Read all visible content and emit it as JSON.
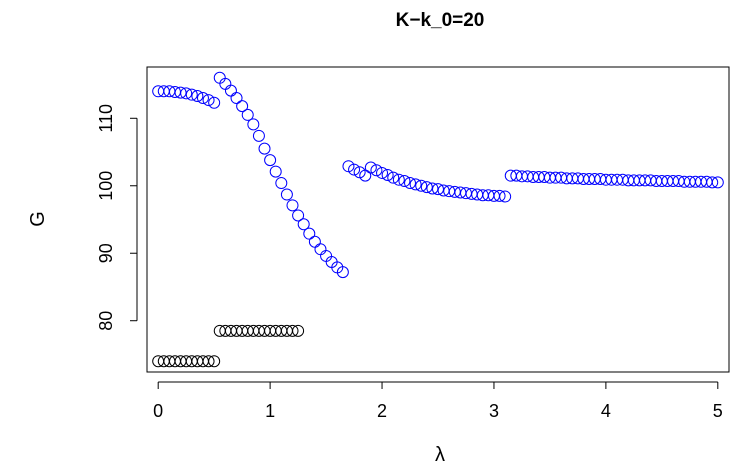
{
  "chart_data": {
    "type": "scatter",
    "title": "K−k_0=20",
    "xlabel": "λ",
    "ylabel": "G",
    "xlim": [
      -0.1,
      5.1
    ],
    "ylim": [
      72.4,
      117.6
    ],
    "x_ticks": [
      0,
      1,
      2,
      3,
      4,
      5
    ],
    "x_tick_labels": [
      "0",
      "1",
      "2",
      "3",
      "4",
      "5"
    ],
    "y_ticks": [
      80,
      90,
      100,
      110
    ],
    "y_tick_labels": [
      "80",
      "90",
      "100",
      "110"
    ],
    "grid": false,
    "legend": "none",
    "marker": "open-circle",
    "series": [
      {
        "color": "#000000",
        "points": [
          [
            0.0,
            74.0
          ],
          [
            0.05,
            74.0
          ],
          [
            0.1,
            74.0
          ],
          [
            0.15,
            74.0
          ],
          [
            0.2,
            74.0
          ],
          [
            0.25,
            74.0
          ],
          [
            0.3,
            74.0
          ],
          [
            0.35,
            74.0
          ],
          [
            0.4,
            74.0
          ],
          [
            0.45,
            74.0
          ],
          [
            0.5,
            74.0
          ],
          [
            0.55,
            78.5
          ],
          [
            0.6,
            78.5
          ],
          [
            0.65,
            78.5
          ],
          [
            0.7,
            78.5
          ],
          [
            0.75,
            78.5
          ],
          [
            0.8,
            78.5
          ],
          [
            0.85,
            78.5
          ],
          [
            0.9,
            78.5
          ],
          [
            0.95,
            78.5
          ],
          [
            1.0,
            78.5
          ],
          [
            1.05,
            78.5
          ],
          [
            1.1,
            78.5
          ],
          [
            1.15,
            78.5
          ],
          [
            1.2,
            78.5
          ],
          [
            1.25,
            78.5
          ]
        ]
      },
      {
        "color": "#0000ff",
        "points": [
          [
            0.0,
            114.0
          ],
          [
            0.05,
            114.0
          ],
          [
            0.1,
            114.0
          ],
          [
            0.15,
            113.9
          ],
          [
            0.2,
            113.8
          ],
          [
            0.25,
            113.7
          ],
          [
            0.3,
            113.5
          ],
          [
            0.35,
            113.3
          ],
          [
            0.4,
            113.0
          ],
          [
            0.45,
            112.7
          ],
          [
            0.5,
            112.3
          ],
          [
            0.55,
            116.0
          ],
          [
            0.6,
            115.1
          ],
          [
            0.65,
            114.1
          ],
          [
            0.7,
            113.0
          ],
          [
            0.75,
            111.8
          ],
          [
            0.8,
            110.5
          ],
          [
            0.85,
            109.1
          ],
          [
            0.9,
            107.4
          ],
          [
            0.95,
            105.5
          ],
          [
            1.0,
            103.8
          ],
          [
            1.05,
            102.1
          ],
          [
            1.1,
            100.4
          ],
          [
            1.15,
            98.7
          ],
          [
            1.2,
            97.1
          ],
          [
            1.25,
            95.6
          ],
          [
            1.3,
            94.3
          ],
          [
            1.35,
            92.9
          ],
          [
            1.4,
            91.7
          ],
          [
            1.45,
            90.6
          ],
          [
            1.5,
            89.6
          ],
          [
            1.55,
            88.7
          ],
          [
            1.6,
            87.9
          ],
          [
            1.65,
            87.2
          ],
          [
            1.7,
            102.9
          ],
          [
            1.75,
            102.4
          ],
          [
            1.8,
            102.0
          ],
          [
            1.85,
            101.5
          ],
          [
            1.9,
            102.7
          ],
          [
            1.95,
            102.3
          ],
          [
            2.0,
            101.9
          ],
          [
            2.05,
            101.6
          ],
          [
            2.1,
            101.2
          ],
          [
            2.15,
            100.9
          ],
          [
            2.2,
            100.7
          ],
          [
            2.25,
            100.4
          ],
          [
            2.3,
            100.2
          ],
          [
            2.35,
            100.0
          ],
          [
            2.4,
            99.8
          ],
          [
            2.45,
            99.6
          ],
          [
            2.5,
            99.5
          ],
          [
            2.55,
            99.3
          ],
          [
            2.6,
            99.2
          ],
          [
            2.65,
            99.1
          ],
          [
            2.7,
            99.0
          ],
          [
            2.75,
            98.9
          ],
          [
            2.8,
            98.8
          ],
          [
            2.85,
            98.7
          ],
          [
            2.9,
            98.6
          ],
          [
            2.95,
            98.6
          ],
          [
            3.0,
            98.5
          ],
          [
            3.05,
            98.5
          ],
          [
            3.1,
            98.4
          ],
          [
            3.15,
            101.5
          ],
          [
            3.2,
            101.5
          ],
          [
            3.25,
            101.4
          ],
          [
            3.3,
            101.4
          ],
          [
            3.35,
            101.3
          ],
          [
            3.4,
            101.3
          ],
          [
            3.45,
            101.3
          ],
          [
            3.5,
            101.2
          ],
          [
            3.55,
            101.2
          ],
          [
            3.6,
            101.2
          ],
          [
            3.65,
            101.1
          ],
          [
            3.7,
            101.1
          ],
          [
            3.75,
            101.1
          ],
          [
            3.8,
            101.0
          ],
          [
            3.85,
            101.0
          ],
          [
            3.9,
            101.0
          ],
          [
            3.95,
            101.0
          ],
          [
            4.0,
            100.9
          ],
          [
            4.05,
            100.9
          ],
          [
            4.1,
            100.9
          ],
          [
            4.15,
            100.9
          ],
          [
            4.2,
            100.8
          ],
          [
            4.25,
            100.8
          ],
          [
            4.3,
            100.8
          ],
          [
            4.35,
            100.8
          ],
          [
            4.4,
            100.8
          ],
          [
            4.45,
            100.7
          ],
          [
            4.5,
            100.7
          ],
          [
            4.55,
            100.7
          ],
          [
            4.6,
            100.7
          ],
          [
            4.65,
            100.7
          ],
          [
            4.7,
            100.6
          ],
          [
            4.75,
            100.6
          ],
          [
            4.8,
            100.6
          ],
          [
            4.85,
            100.6
          ],
          [
            4.9,
            100.6
          ],
          [
            4.95,
            100.5
          ],
          [
            5.0,
            100.5
          ]
        ]
      }
    ]
  }
}
